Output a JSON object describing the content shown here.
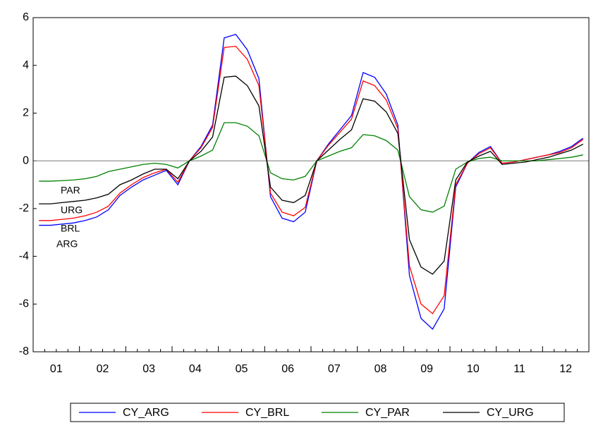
{
  "chart_data": {
    "type": "line",
    "categories": [
      null,
      "01",
      null,
      null,
      null,
      "02",
      null,
      null,
      null,
      "03",
      null,
      null,
      null,
      "04",
      null,
      null,
      null,
      "05",
      null,
      null,
      null,
      "06",
      null,
      null,
      null,
      "07",
      null,
      null,
      null,
      "08",
      null,
      null,
      null,
      "09",
      null,
      null,
      null,
      "10",
      null,
      null,
      null,
      "11",
      null,
      null,
      null,
      "12",
      null,
      null
    ],
    "series": [
      {
        "name": "CY_ARG",
        "color": "#0000ff",
        "values": [
          -2.7,
          -2.7,
          -2.65,
          -2.6,
          -2.5,
          -2.35,
          -2.05,
          -1.45,
          -1.1,
          -0.8,
          -0.6,
          -0.4,
          -1.0,
          0.0,
          0.6,
          1.5,
          5.15,
          5.3,
          4.65,
          3.45,
          -1.5,
          -2.4,
          -2.55,
          -2.15,
          0.0,
          0.7,
          1.3,
          1.9,
          3.7,
          3.5,
          2.8,
          1.5,
          -4.8,
          -6.6,
          -7.05,
          -6.2,
          -1.1,
          -0.1,
          0.35,
          0.6,
          -0.1,
          -0.05,
          0.05,
          0.15,
          0.25,
          0.4,
          0.6,
          0.95
        ]
      },
      {
        "name": "CY_BRL",
        "color": "#ff0000",
        "values": [
          -2.5,
          -2.5,
          -2.45,
          -2.4,
          -2.3,
          -2.15,
          -1.9,
          -1.35,
          -1.0,
          -0.7,
          -0.5,
          -0.35,
          -0.9,
          0.0,
          0.55,
          1.4,
          4.75,
          4.8,
          4.25,
          3.15,
          -1.35,
          -2.15,
          -2.3,
          -1.95,
          0.0,
          0.65,
          1.2,
          1.75,
          3.35,
          3.15,
          2.55,
          1.35,
          -4.4,
          -6.0,
          -6.4,
          -5.65,
          -1.0,
          -0.1,
          0.3,
          0.55,
          -0.1,
          -0.05,
          0.05,
          0.15,
          0.25,
          0.35,
          0.55,
          0.9
        ]
      },
      {
        "name": "CY_PAR",
        "color": "#008000",
        "values": [
          -0.85,
          -0.85,
          -0.83,
          -0.8,
          -0.75,
          -0.65,
          -0.45,
          -0.35,
          -0.25,
          -0.15,
          -0.1,
          -0.15,
          -0.3,
          0.0,
          0.2,
          0.45,
          1.6,
          1.6,
          1.45,
          1.05,
          -0.5,
          -0.75,
          -0.8,
          -0.65,
          0.0,
          0.2,
          0.4,
          0.55,
          1.1,
          1.05,
          0.85,
          0.45,
          -1.5,
          -2.05,
          -2.15,
          -1.9,
          -0.35,
          -0.05,
          0.1,
          0.15,
          0.0,
          0.0,
          0.0,
          0.0,
          0.05,
          0.1,
          0.15,
          0.25
        ]
      },
      {
        "name": "CY_URG",
        "color": "#000000",
        "values": [
          -1.8,
          -1.8,
          -1.75,
          -1.7,
          -1.65,
          -1.55,
          -1.4,
          -1.0,
          -0.8,
          -0.55,
          -0.35,
          -0.35,
          -0.75,
          0.0,
          0.4,
          1.0,
          3.5,
          3.55,
          3.15,
          2.3,
          -1.1,
          -1.65,
          -1.75,
          -1.45,
          0.0,
          0.45,
          0.9,
          1.3,
          2.6,
          2.5,
          2.05,
          1.15,
          -3.3,
          -4.45,
          -4.75,
          -4.2,
          -0.8,
          -0.05,
          0.2,
          0.4,
          -0.15,
          -0.1,
          -0.05,
          0.05,
          0.15,
          0.3,
          0.45,
          0.7
        ]
      }
    ],
    "annotations": [
      "PAR",
      "URG",
      "BRL",
      "ARG"
    ],
    "ylim": [
      -8,
      6
    ],
    "yticks": [
      -8,
      -6,
      -4,
      -2,
      0,
      2,
      4,
      6
    ],
    "zero_line": true,
    "legend": "bottom"
  }
}
